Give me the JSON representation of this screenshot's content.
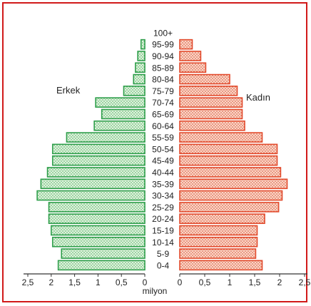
{
  "chart_data": {
    "type": "bar",
    "subtype": "population-pyramid",
    "title": "",
    "unit_label": "milyon",
    "age_groups": [
      "0-4",
      "5-9",
      "10-14",
      "15-19",
      "20-24",
      "25-29",
      "30-34",
      "35-39",
      "40-44",
      "45-49",
      "50-54",
      "55-59",
      "60-64",
      "65-69",
      "70-74",
      "75-79",
      "80-84",
      "85-89",
      "90-94",
      "95-99",
      "100+"
    ],
    "series": [
      {
        "name": "Erkek",
        "side": "left",
        "color": "#2e9e4a",
        "fill": "#dff2dc",
        "values": [
          1.85,
          1.78,
          1.97,
          2.0,
          2.05,
          2.05,
          2.3,
          2.22,
          2.08,
          1.97,
          1.97,
          1.67,
          1.08,
          0.92,
          1.05,
          0.45,
          0.24,
          0.2,
          0.15,
          0.08,
          0
        ]
      },
      {
        "name": "Kadın",
        "side": "right",
        "color": "#e24a2c",
        "fill": "#fbd6c7",
        "values": [
          1.65,
          1.52,
          1.55,
          1.55,
          1.7,
          1.98,
          2.05,
          2.15,
          2.02,
          1.95,
          1.95,
          1.65,
          1.3,
          1.25,
          1.25,
          1.15,
          1.0,
          0.52,
          0.42,
          0.25,
          0
        ]
      }
    ],
    "x_ticks": [
      "2,5",
      "2",
      "1,5",
      "1",
      "0,5",
      "0",
      "0",
      "0,5",
      "1",
      "1,5",
      "2",
      "2,5"
    ],
    "xlim": [
      0,
      2.5
    ],
    "grid": false
  }
}
